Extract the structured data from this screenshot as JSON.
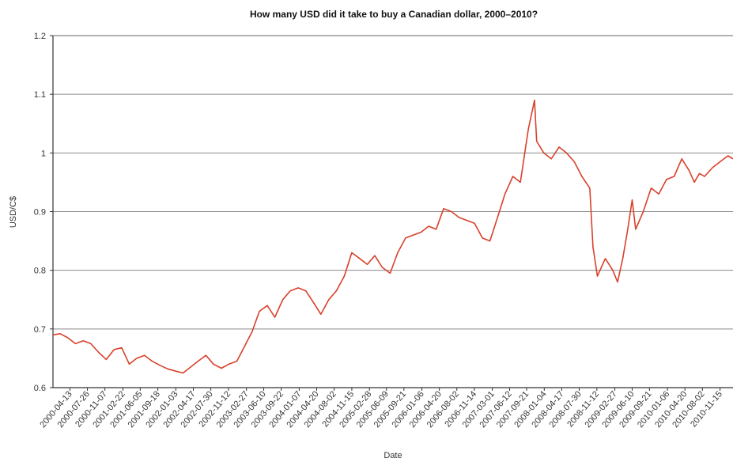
{
  "chart_data": {
    "type": "line",
    "title": "How many USD did it take to buy a Canadian dollar, 2000–2010?",
    "xlabel": "Date",
    "ylabel": "USD/C$",
    "ylim": [
      0.6,
      1.2
    ],
    "yticks": [
      "0.6",
      "0.7",
      "0.8",
      "0.9",
      "1",
      "1.1",
      "1.2"
    ],
    "xlim": [
      "2000-01-03",
      "2011-01-31"
    ],
    "xticks": [
      "2000-04-13",
      "2000-07-26",
      "2000-11-07",
      "2001-02-22",
      "2001-06-05",
      "2001-09-18",
      "2002-01-03",
      "2002-04-17",
      "2002-07-30",
      "2002-11-12",
      "2003-02-27",
      "2003-06-10",
      "2003-09-22",
      "2004-01-07",
      "2004-04-20",
      "2004-08-02",
      "2004-11-15",
      "2005-02-28",
      "2005-06-09",
      "2005-09-21",
      "2006-01-06",
      "2006-04-20",
      "2006-08-02",
      "2006-11-14",
      "2007-03-01",
      "2007-06-12",
      "2007-09-21",
      "2008-01-04",
      "2008-04-17",
      "2008-07-30",
      "2008-11-12",
      "2009-02-27",
      "2009-06-10",
      "2009-09-21",
      "2010-01-06",
      "2010-04-20",
      "2010-08-02",
      "2010-11-15"
    ],
    "grid": true,
    "line_color": "#d8412b",
    "series": [
      {
        "x": [
          "2000-01-03",
          "2000-02-15",
          "2000-04-01",
          "2000-05-15",
          "2000-07-01",
          "2000-08-15",
          "2000-10-01",
          "2000-11-15",
          "2001-01-01",
          "2001-02-15",
          "2001-04-01",
          "2001-05-15",
          "2001-07-01",
          "2001-08-15",
          "2001-10-01",
          "2001-11-15",
          "2002-01-03",
          "2002-02-15",
          "2002-04-01",
          "2002-05-15",
          "2002-07-01",
          "2002-08-15",
          "2002-10-01",
          "2002-11-15",
          "2003-01-01",
          "2003-02-15",
          "2003-04-01",
          "2003-05-15",
          "2003-07-01",
          "2003-08-15",
          "2003-10-01",
          "2003-11-15",
          "2004-01-01",
          "2004-02-15",
          "2004-04-01",
          "2004-05-15",
          "2004-07-01",
          "2004-08-15",
          "2004-10-01",
          "2004-11-15",
          "2005-01-01",
          "2005-02-15",
          "2005-04-01",
          "2005-05-15",
          "2005-07-01",
          "2005-08-15",
          "2005-10-01",
          "2005-11-15",
          "2006-01-01",
          "2006-02-15",
          "2006-04-01",
          "2006-05-15",
          "2006-07-01",
          "2006-08-15",
          "2006-10-01",
          "2006-11-15",
          "2007-01-01",
          "2007-02-15",
          "2007-04-01",
          "2007-05-15",
          "2007-07-01",
          "2007-08-15",
          "2007-10-01",
          "2007-11-07",
          "2007-11-20",
          "2008-01-01",
          "2008-02-15",
          "2008-04-01",
          "2008-05-15",
          "2008-07-01",
          "2008-08-15",
          "2008-10-01",
          "2008-10-20",
          "2008-11-15",
          "2009-01-01",
          "2009-02-15",
          "2009-03-15",
          "2009-04-15",
          "2009-05-15",
          "2009-06-10",
          "2009-07-01",
          "2009-08-15",
          "2009-10-01",
          "2009-11-15",
          "2010-01-01",
          "2010-02-15",
          "2010-04-01",
          "2010-05-15",
          "2010-06-15",
          "2010-07-15",
          "2010-08-15",
          "2010-10-01",
          "2010-11-15",
          "2011-01-01",
          "2011-01-31"
        ],
        "values": [
          0.69,
          0.692,
          0.685,
          0.675,
          0.68,
          0.675,
          0.66,
          0.648,
          0.665,
          0.668,
          0.64,
          0.65,
          0.655,
          0.645,
          0.638,
          0.632,
          0.628,
          0.625,
          0.635,
          0.645,
          0.655,
          0.64,
          0.633,
          0.64,
          0.645,
          0.67,
          0.695,
          0.73,
          0.74,
          0.72,
          0.75,
          0.765,
          0.77,
          0.765,
          0.745,
          0.725,
          0.75,
          0.765,
          0.79,
          0.83,
          0.82,
          0.81,
          0.825,
          0.805,
          0.795,
          0.83,
          0.855,
          0.86,
          0.865,
          0.875,
          0.87,
          0.905,
          0.9,
          0.89,
          0.885,
          0.88,
          0.855,
          0.85,
          0.89,
          0.93,
          0.96,
          0.95,
          1.04,
          1.09,
          1.02,
          1.0,
          0.99,
          1.01,
          1.0,
          0.985,
          0.96,
          0.94,
          0.84,
          0.79,
          0.82,
          0.8,
          0.78,
          0.82,
          0.87,
          0.92,
          0.87,
          0.9,
          0.94,
          0.93,
          0.955,
          0.96,
          0.99,
          0.97,
          0.95,
          0.965,
          0.96,
          0.975,
          0.985,
          0.995,
          0.99
        ]
      }
    ]
  }
}
